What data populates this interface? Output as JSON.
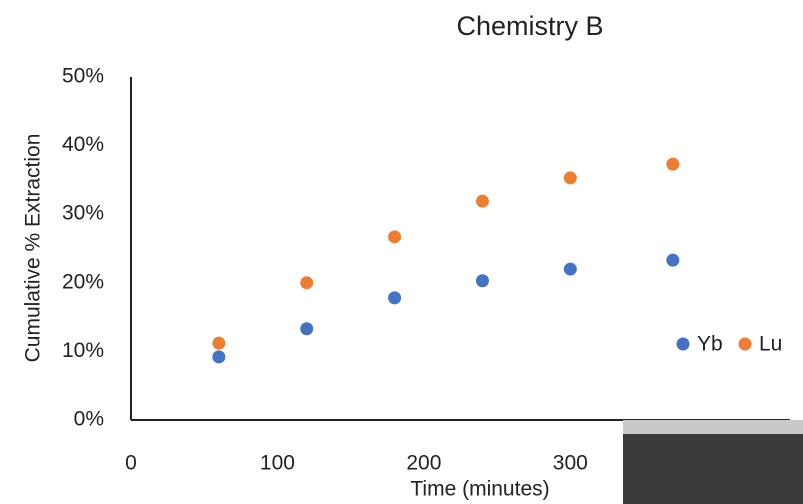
{
  "chart_data": {
    "type": "scatter",
    "title": "Chemistry B",
    "x_label": "Time (minutes)",
    "y_label": "Cumulative % Extraction",
    "xlim": [
      0,
      450
    ],
    "xticks": [
      0,
      100,
      200,
      300
    ],
    "ylim": [
      0,
      50
    ],
    "yticks": [
      {
        "value": 0,
        "label": "0%"
      },
      {
        "value": 10,
        "label": "10%"
      },
      {
        "value": 20,
        "label": "20%"
      },
      {
        "value": 30,
        "label": "30%"
      },
      {
        "value": 40,
        "label": "40%"
      },
      {
        "value": 50,
        "label": "50%"
      }
    ],
    "series": [
      {
        "name": "Yb",
        "color": "#4472c4",
        "x": [
          60,
          120,
          180,
          240,
          300,
          370
        ],
        "values": [
          9.2,
          13.3,
          17.8,
          20.3,
          22,
          23.3
        ]
      },
      {
        "name": "Lu",
        "color": "#ed7d31",
        "x": [
          60,
          120,
          180,
          240,
          300,
          370
        ],
        "values": [
          11.2,
          20,
          26.7,
          31.9,
          35.3,
          37.3
        ]
      }
    ]
  }
}
